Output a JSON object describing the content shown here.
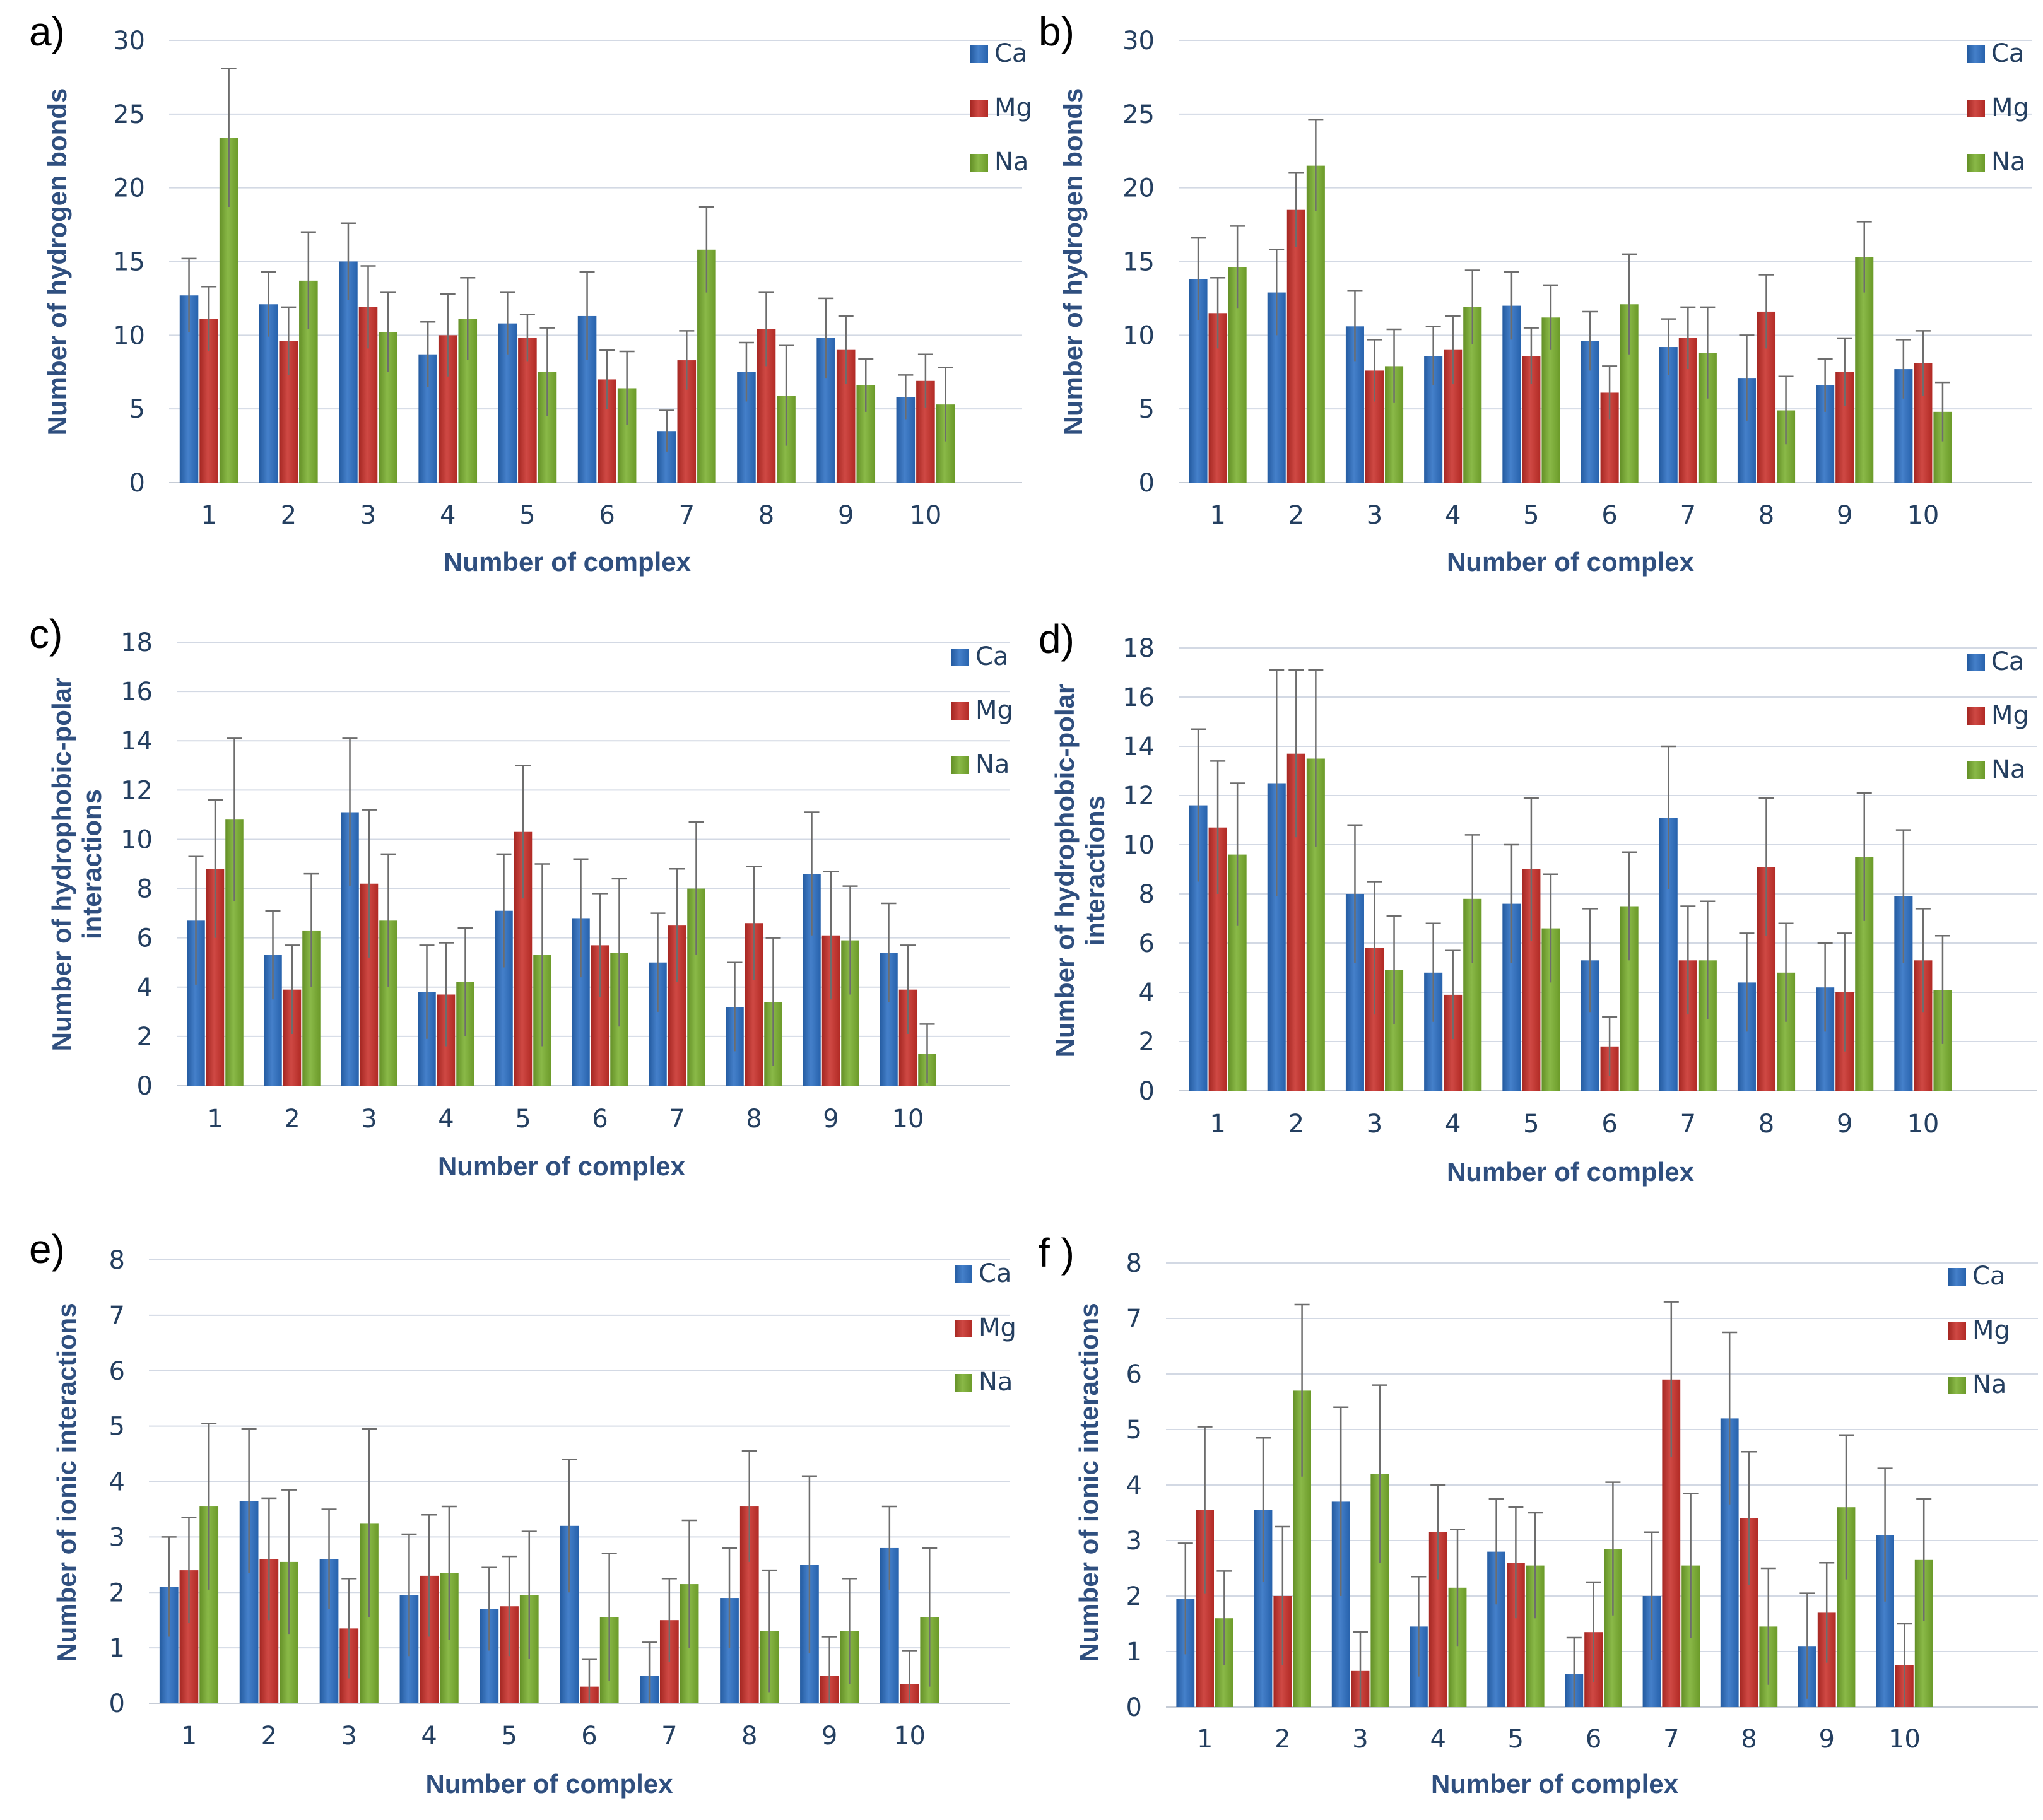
{
  "legend_colors": {
    "Ca": "#2c6fc3",
    "Mg": "#c9302a",
    "Na": "#7aaf2f"
  },
  "chart_data": [
    {
      "panel": "a)",
      "type": "bar",
      "title": "",
      "xlabel": "Number of complex",
      "ylabel": "Number of hydrogen bonds",
      "ylim": [
        0,
        30
      ],
      "yticks": [
        "0",
        "5",
        "10",
        "15",
        "20",
        "25",
        "30"
      ],
      "categories": [
        "1",
        "2",
        "3",
        "4",
        "5",
        "6",
        "7",
        "8",
        "9",
        "10"
      ],
      "legend_position": "top-right",
      "series": [
        {
          "name": "Ca",
          "values": [
            12.7,
            12.1,
            15.0,
            8.7,
            10.8,
            11.3,
            3.5,
            7.5,
            9.8,
            5.8
          ],
          "errors": [
            2.5,
            2.2,
            2.6,
            2.2,
            2.1,
            3.0,
            1.4,
            2.0,
            2.7,
            1.5
          ]
        },
        {
          "name": "Mg",
          "values": [
            11.1,
            9.6,
            11.9,
            10.0,
            9.8,
            7.0,
            8.3,
            10.4,
            9.0,
            6.9
          ],
          "errors": [
            2.2,
            2.3,
            2.8,
            2.8,
            1.6,
            2.0,
            2.0,
            2.5,
            2.3,
            1.8
          ]
        },
        {
          "name": "Na",
          "values": [
            23.4,
            13.7,
            10.2,
            11.1,
            7.5,
            6.4,
            15.8,
            5.9,
            6.6,
            5.3
          ],
          "errors": [
            4.7,
            3.3,
            2.7,
            2.8,
            3.0,
            2.5,
            2.9,
            3.4,
            1.8,
            2.5
          ]
        }
      ]
    },
    {
      "panel": "b)",
      "type": "bar",
      "title": "",
      "xlabel": "Number of complex",
      "ylabel": "Number of hydrogen bonds",
      "ylim": [
        0,
        30
      ],
      "yticks": [
        "0",
        "5",
        "10",
        "15",
        "20",
        "25",
        "30"
      ],
      "categories": [
        "1",
        "2",
        "3",
        "4",
        "5",
        "6",
        "7",
        "8",
        "9",
        "10"
      ],
      "legend_position": "top-right",
      "series": [
        {
          "name": "Ca",
          "values": [
            13.8,
            12.9,
            10.6,
            8.6,
            12.0,
            9.6,
            9.2,
            7.1,
            6.6,
            7.7
          ],
          "errors": [
            2.8,
            2.9,
            2.4,
            2.0,
            2.3,
            2.0,
            1.9,
            2.9,
            1.8,
            2.0
          ]
        },
        {
          "name": "Mg",
          "values": [
            11.5,
            18.5,
            7.6,
            9.0,
            8.6,
            6.1,
            9.8,
            11.6,
            7.5,
            8.1
          ],
          "errors": [
            2.4,
            2.5,
            2.1,
            2.3,
            1.9,
            1.8,
            2.1,
            2.5,
            2.3,
            2.2
          ]
        },
        {
          "name": "Na",
          "values": [
            14.6,
            21.5,
            7.9,
            11.9,
            11.2,
            12.1,
            8.8,
            4.9,
            15.3,
            4.8
          ],
          "errors": [
            2.8,
            3.1,
            2.5,
            2.5,
            2.2,
            3.4,
            3.1,
            2.3,
            2.4,
            2.0
          ]
        }
      ]
    },
    {
      "panel": "c)",
      "type": "bar",
      "title": "",
      "xlabel": "Number of complex",
      "ylabel": "Number of hydrophobic-polar interactions",
      "ylim": [
        0,
        18
      ],
      "yticks": [
        "0",
        "2",
        "4",
        "6",
        "8",
        "10",
        "12",
        "14",
        "16",
        "18"
      ],
      "categories": [
        "1",
        "2",
        "3",
        "4",
        "5",
        "6",
        "7",
        "8",
        "9",
        "10"
      ],
      "legend_position": "top-right",
      "series": [
        {
          "name": "Ca",
          "values": [
            6.7,
            5.3,
            11.1,
            3.8,
            7.1,
            6.8,
            5.0,
            3.2,
            8.6,
            5.4
          ],
          "errors": [
            2.6,
            1.8,
            3.0,
            1.9,
            2.3,
            2.4,
            2.0,
            1.8,
            2.5,
            2.0
          ]
        },
        {
          "name": "Mg",
          "values": [
            8.8,
            3.9,
            8.2,
            3.7,
            10.3,
            5.7,
            6.5,
            6.6,
            6.1,
            3.9
          ],
          "errors": [
            2.8,
            1.8,
            3.0,
            2.1,
            2.7,
            2.1,
            2.3,
            2.3,
            2.6,
            1.8
          ]
        },
        {
          "name": "Na",
          "values": [
            10.8,
            6.3,
            6.7,
            4.2,
            5.3,
            5.4,
            8.0,
            3.4,
            5.9,
            1.3
          ],
          "errors": [
            3.3,
            2.3,
            2.7,
            2.2,
            3.7,
            3.0,
            2.7,
            2.6,
            2.2,
            1.2
          ]
        }
      ]
    },
    {
      "panel": "d)",
      "type": "bar",
      "title": "",
      "xlabel": "Number of complex",
      "ylabel": "Number of hydrophobic-polar interactions",
      "ylim": [
        0,
        18
      ],
      "yticks": [
        "0",
        "2",
        "4",
        "6",
        "8",
        "10",
        "12",
        "14",
        "16",
        "18"
      ],
      "categories": [
        "1",
        "2",
        "3",
        "4",
        "5",
        "6",
        "7",
        "8",
        "9",
        "10"
      ],
      "legend_position": "top-right",
      "series": [
        {
          "name": "Ca",
          "values": [
            11.6,
            12.5,
            8.0,
            4.8,
            7.6,
            5.3,
            11.1,
            4.4,
            4.2,
            7.9
          ],
          "errors": [
            3.1,
            4.6,
            2.8,
            2.0,
            2.4,
            2.1,
            2.9,
            2.0,
            1.8,
            2.7
          ]
        },
        {
          "name": "Mg",
          "values": [
            10.7,
            13.7,
            5.8,
            3.9,
            9.0,
            1.8,
            5.3,
            9.1,
            4.0,
            5.3
          ],
          "errors": [
            2.7,
            3.4,
            2.7,
            1.8,
            2.9,
            1.2,
            2.2,
            2.8,
            2.4,
            2.1
          ]
        },
        {
          "name": "Na",
          "values": [
            9.6,
            13.5,
            4.9,
            7.8,
            6.6,
            7.5,
            5.3,
            4.8,
            9.5,
            4.1
          ],
          "errors": [
            2.9,
            3.6,
            2.2,
            2.6,
            2.2,
            2.2,
            2.4,
            2.0,
            2.6,
            2.2
          ]
        }
      ]
    },
    {
      "panel": "e)",
      "type": "bar",
      "title": "",
      "xlabel": "Number of complex",
      "ylabel": "Number of ionic interactions",
      "ylim": [
        0,
        8
      ],
      "yticks": [
        "0",
        "1",
        "2",
        "3",
        "4",
        "5",
        "6",
        "7",
        "8"
      ],
      "categories": [
        "1",
        "2",
        "3",
        "4",
        "5",
        "6",
        "7",
        "8",
        "9",
        "10"
      ],
      "legend_position": "top-right",
      "series": [
        {
          "name": "Ca",
          "values": [
            2.1,
            3.65,
            2.6,
            1.95,
            1.7,
            3.2,
            0.5,
            1.9,
            2.5,
            2.8
          ],
          "errors": [
            0.9,
            1.3,
            0.9,
            1.1,
            0.75,
            1.2,
            0.6,
            0.9,
            1.6,
            0.75
          ]
        },
        {
          "name": "Mg",
          "values": [
            2.4,
            2.6,
            1.35,
            2.3,
            1.75,
            0.3,
            1.5,
            3.55,
            0.5,
            0.35
          ],
          "errors": [
            0.95,
            1.1,
            0.9,
            1.1,
            0.9,
            0.5,
            0.75,
            1.0,
            0.7,
            0.6
          ]
        },
        {
          "name": "Na",
          "values": [
            3.55,
            2.55,
            3.25,
            2.35,
            1.95,
            1.55,
            2.15,
            1.3,
            1.3,
            1.55
          ],
          "errors": [
            1.5,
            1.3,
            1.7,
            1.2,
            1.15,
            1.15,
            1.15,
            1.1,
            0.95,
            1.25
          ]
        }
      ]
    },
    {
      "panel": "f )",
      "type": "bar",
      "title": "",
      "xlabel": "Number of complex",
      "ylabel": "Number of ionic interactions",
      "ylim": [
        0,
        8
      ],
      "yticks": [
        "0",
        "1",
        "2",
        "3",
        "4",
        "5",
        "6",
        "7",
        "8"
      ],
      "categories": [
        "1",
        "2",
        "3",
        "4",
        "5",
        "6",
        "7",
        "8",
        "9",
        "10"
      ],
      "legend_position": "top-right",
      "series": [
        {
          "name": "Ca",
          "values": [
            1.95,
            3.55,
            3.7,
            1.45,
            2.8,
            0.6,
            2.0,
            5.2,
            1.1,
            3.1
          ],
          "errors": [
            1.0,
            1.3,
            1.7,
            0.9,
            0.95,
            0.65,
            1.15,
            1.55,
            0.95,
            1.2
          ]
        },
        {
          "name": "Mg",
          "values": [
            3.55,
            2.0,
            0.65,
            3.15,
            2.6,
            1.35,
            5.9,
            3.4,
            1.7,
            0.75
          ],
          "errors": [
            1.5,
            1.25,
            0.7,
            0.85,
            1.0,
            0.9,
            1.4,
            1.2,
            0.9,
            0.75
          ]
        },
        {
          "name": "Na",
          "values": [
            1.6,
            5.7,
            4.2,
            2.15,
            2.55,
            2.85,
            2.55,
            1.45,
            3.6,
            2.65
          ],
          "errors": [
            0.85,
            1.55,
            1.6,
            1.05,
            0.95,
            1.2,
            1.3,
            1.05,
            1.3,
            1.1
          ]
        }
      ]
    }
  ]
}
